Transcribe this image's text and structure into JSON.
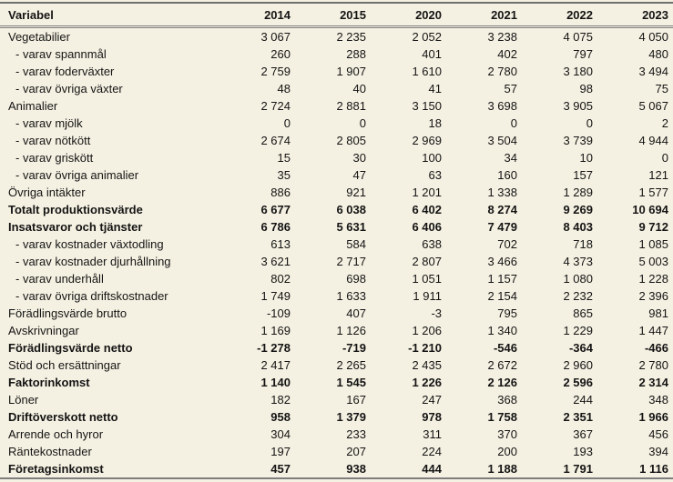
{
  "colors": {
    "background": "#f5f1e2",
    "rule_dark": "#6f6f6f",
    "rule_light": "#7d7d7d",
    "text": "#141414"
  },
  "table": {
    "header": {
      "variable": "Variabel",
      "years": [
        "2014",
        "2015",
        "2020",
        "2021",
        "2022",
        "2023"
      ]
    },
    "rows": [
      {
        "label": "Vegetabilier",
        "style": "normal",
        "values": [
          "3 067",
          "2 235",
          "2 052",
          "3 238",
          "4 075",
          "4 050"
        ]
      },
      {
        "label": "- varav spannmål",
        "style": "sub",
        "values": [
          "260",
          "288",
          "401",
          "402",
          "797",
          "480"
        ]
      },
      {
        "label": "- varav foderväxter",
        "style": "sub",
        "values": [
          "2 759",
          "1 907",
          "1 610",
          "2 780",
          "3 180",
          "3 494"
        ]
      },
      {
        "label": "- varav övriga växter",
        "style": "sub",
        "values": [
          "48",
          "40",
          "41",
          "57",
          "98",
          "75"
        ]
      },
      {
        "label": "Animalier",
        "style": "normal",
        "values": [
          "2 724",
          "2 881",
          "3 150",
          "3 698",
          "3 905",
          "5 067"
        ]
      },
      {
        "label": "- varav mjölk",
        "style": "sub",
        "values": [
          "0",
          "0",
          "18",
          "0",
          "0",
          "2"
        ]
      },
      {
        "label": "- varav nötkött",
        "style": "sub",
        "values": [
          "2 674",
          "2 805",
          "2 969",
          "3 504",
          "3 739",
          "4 944"
        ]
      },
      {
        "label": "- varav griskött",
        "style": "sub",
        "values": [
          "15",
          "30",
          "100",
          "34",
          "10",
          "0"
        ]
      },
      {
        "label": "- varav övriga animalier",
        "style": "sub",
        "values": [
          "35",
          "47",
          "63",
          "160",
          "157",
          "121"
        ]
      },
      {
        "label": "Övriga intäkter",
        "style": "normal",
        "values": [
          "886",
          "921",
          "1 201",
          "1 338",
          "1 289",
          "1 577"
        ]
      },
      {
        "label": "Totalt produktionsvärde",
        "style": "bold",
        "values": [
          "6 677",
          "6 038",
          "6 402",
          "8 274",
          "9 269",
          "10 694"
        ]
      },
      {
        "label": "Insatsvaror och tjänster",
        "style": "bold",
        "values": [
          "6 786",
          "5 631",
          "6 406",
          "7 479",
          "8 403",
          "9 712"
        ]
      },
      {
        "label": "- varav kostnader växtodling",
        "style": "sub",
        "values": [
          "613",
          "584",
          "638",
          "702",
          "718",
          "1 085"
        ]
      },
      {
        "label": "- varav kostnader djurhållning",
        "style": "sub",
        "values": [
          "3 621",
          "2 717",
          "2 807",
          "3 466",
          "4 373",
          "5 003"
        ]
      },
      {
        "label": "- varav underhåll",
        "style": "sub",
        "values": [
          "802",
          "698",
          "1 051",
          "1 157",
          "1 080",
          "1 228"
        ]
      },
      {
        "label": "- varav övriga driftskostnader",
        "style": "sub",
        "values": [
          "1 749",
          "1 633",
          "1 911",
          "2 154",
          "2 232",
          "2 396"
        ]
      },
      {
        "label": "Förädlingsvärde brutto",
        "style": "normal",
        "values": [
          "-109",
          "407",
          "-3",
          "795",
          "865",
          "981"
        ]
      },
      {
        "label": "Avskrivningar",
        "style": "normal",
        "values": [
          "1 169",
          "1 126",
          "1 206",
          "1 340",
          "1 229",
          "1 447"
        ]
      },
      {
        "label": "Förädlingsvärde netto",
        "style": "bold",
        "values": [
          "-1 278",
          "-719",
          "-1 210",
          "-546",
          "-364",
          "-466"
        ]
      },
      {
        "label": "Stöd och ersättningar",
        "style": "normal",
        "values": [
          "2 417",
          "2 265",
          "2 435",
          "2 672",
          "2 960",
          "2 780"
        ]
      },
      {
        "label": "Faktorinkomst",
        "style": "bold",
        "values": [
          "1 140",
          "1 545",
          "1 226",
          "2 126",
          "2 596",
          "2 314"
        ]
      },
      {
        "label": "Löner",
        "style": "normal",
        "values": [
          "182",
          "167",
          "247",
          "368",
          "244",
          "348"
        ]
      },
      {
        "label": "Driftöverskott netto",
        "style": "bold",
        "values": [
          "958",
          "1 379",
          "978",
          "1 758",
          "2 351",
          "1 966"
        ]
      },
      {
        "label": "Arrende och hyror",
        "style": "normal",
        "values": [
          "304",
          "233",
          "311",
          "370",
          "367",
          "456"
        ]
      },
      {
        "label": "Räntekostnader",
        "style": "normal",
        "values": [
          "197",
          "207",
          "224",
          "200",
          "193",
          "394"
        ]
      },
      {
        "label": "Företagsinkomst",
        "style": "bold",
        "values": [
          "457",
          "938",
          "444",
          "1 188",
          "1 791",
          "1 116"
        ]
      }
    ]
  }
}
